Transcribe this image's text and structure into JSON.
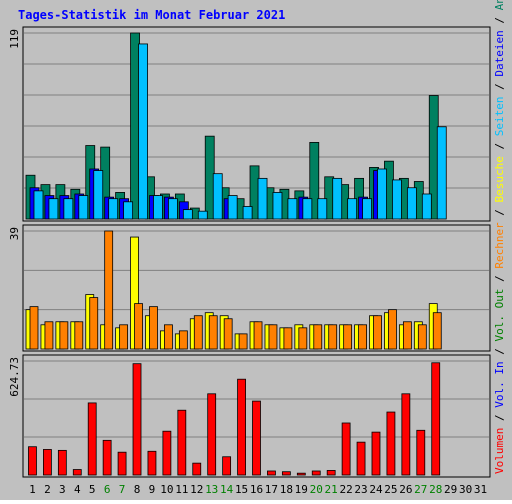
{
  "title": "Tages-Statistik im Monat Februar 2021",
  "colors": {
    "background": "#c0c0c0",
    "plot": "#c0c0c0",
    "title": "#0000ff",
    "grid": "#808080",
    "anfragen": "#008060",
    "dateien": "#0000ff",
    "seiten": "#00c0ff",
    "besuche": "#ffff00",
    "rechner": "#ff8000",
    "volumen": "#ff0000",
    "slash": "#000000",
    "weekend": "#008000",
    "weekday": "#000000"
  },
  "right_legend": [
    {
      "text": "Volumen",
      "color": "#ff0000"
    },
    {
      "text": "/",
      "color": "#000000"
    },
    {
      "text": "Vol. In",
      "color": "#0000ff"
    },
    {
      "text": "/",
      "color": "#000000"
    },
    {
      "text": "Vol. Out",
      "color": "#008000"
    },
    {
      "text": "/",
      "color": "#000000"
    },
    {
      "text": "Rechner",
      "color": "#ff8000"
    },
    {
      "text": "/",
      "color": "#000000"
    },
    {
      "text": "Besuche",
      "color": "#ffff00"
    },
    {
      "text": "/",
      "color": "#000000"
    },
    {
      "text": "Seiten",
      "color": "#00c0ff"
    },
    {
      "text": "/",
      "color": "#000000"
    },
    {
      "text": "Dateien",
      "color": "#0000ff"
    },
    {
      "text": "/",
      "color": "#000000"
    },
    {
      "text": "Anfragen",
      "color": "#008060"
    }
  ],
  "chart_data": {
    "type": "bar",
    "categories": [
      "1",
      "2",
      "3",
      "4",
      "5",
      "6",
      "7",
      "8",
      "9",
      "10",
      "11",
      "12",
      "13",
      "14",
      "15",
      "16",
      "17",
      "18",
      "19",
      "20",
      "21",
      "22",
      "23",
      "24",
      "25",
      "26",
      "27",
      "28",
      "29",
      "30",
      "31"
    ],
    "weekend_days": [
      "6",
      "7",
      "13",
      "14",
      "20",
      "21",
      "27",
      "28"
    ],
    "days_with_data": 28,
    "panels": [
      {
        "id": "requests",
        "ylabel": "119",
        "ymax": 119,
        "grid": true,
        "series": [
          {
            "name": "Anfragen",
            "values": [
              28,
              22,
              22,
              19,
              47,
              46,
              17,
              119,
              27,
              16,
              16,
              7,
              53,
              20,
              13,
              34,
              20,
              19,
              18,
              49,
              27,
              22,
              26,
              33,
              37,
              26,
              24,
              79
            ]
          },
          {
            "name": "Dateien",
            "values": [
              20,
              15,
              15,
              16,
              32,
              14,
              13,
              0,
              15,
              14,
              11,
              0,
              0,
              13,
              0,
              0,
              0,
              0,
              14,
              0,
              0,
              0,
              14,
              31,
              0,
              0,
              0,
              0
            ]
          },
          {
            "name": "Seiten",
            "values": [
              18,
              13,
              13,
              15,
              31,
              13,
              11,
              112,
              15,
              13,
              6,
              5,
              29,
              15,
              8,
              26,
              17,
              13,
              13,
              13,
              26,
              13,
              13,
              32,
              25,
              20,
              16,
              59
            ]
          }
        ]
      },
      {
        "id": "visits",
        "ylabel": "39",
        "ymax": 39,
        "grid": true,
        "series": [
          {
            "name": "Besuche",
            "values": [
              13,
              8,
              9,
              9,
              18,
              8,
              7,
              37,
              11,
              6,
              5,
              10,
              12,
              11,
              5,
              9,
              8,
              7,
              8,
              8,
              8,
              8,
              8,
              11,
              12,
              8,
              9,
              15
            ]
          },
          {
            "name": "Rechner",
            "values": [
              14,
              9,
              9,
              9,
              17,
              39,
              8,
              15,
              14,
              8,
              6,
              11,
              11,
              10,
              5,
              9,
              8,
              7,
              7,
              8,
              8,
              8,
              8,
              11,
              13,
              9,
              8,
              12
            ]
          }
        ]
      },
      {
        "id": "volume",
        "ylabel": "624.73",
        "ymax": 624.73,
        "grid": true,
        "series": [
          {
            "name": "Volumen",
            "values": [
              155,
              140,
              135,
              30,
              395,
              190,
              125,
              610,
              130,
              240,
              355,
              65,
              445,
              100,
              525,
              405,
              22,
              18,
              10,
              22,
              25,
              285,
              180,
              235,
              345,
              445,
              245,
              615
            ]
          }
        ]
      }
    ]
  }
}
